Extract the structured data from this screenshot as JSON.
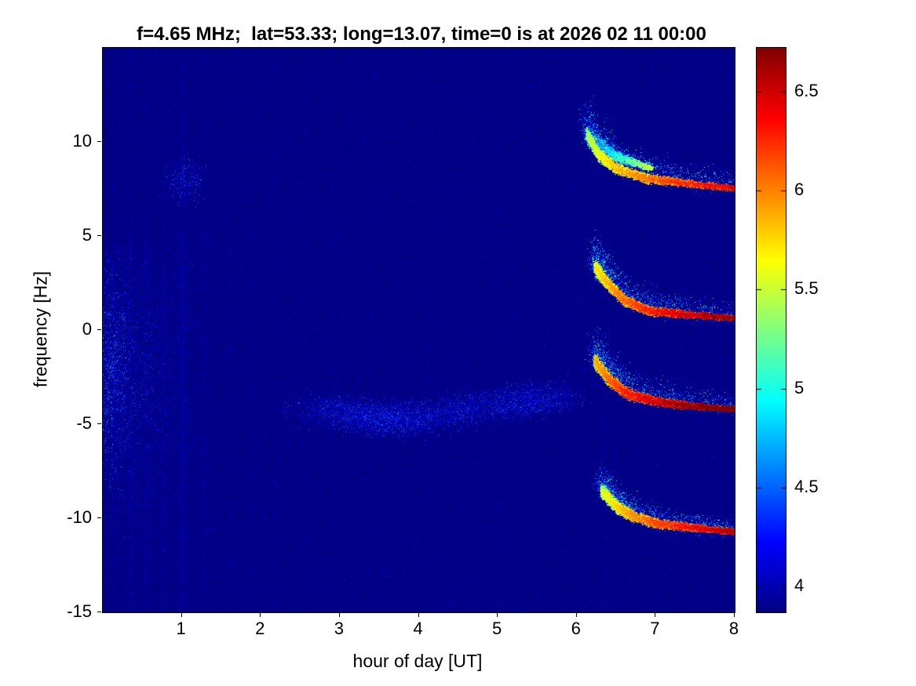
{
  "figure": {
    "background": "#ffffff",
    "accent_colormap": "jet",
    "deep_blue_background": "#00008a"
  },
  "chart_data": {
    "type": "heatmap",
    "title": "f=4.65 MHz;  lat=53.33; long=13.07, time=0 is at 2026 02 11 00:00",
    "xlabel": "hour of day [UT]",
    "ylabel": "frequency [Hz]",
    "xlim": [
      0,
      8
    ],
    "ylim": [
      -15,
      15
    ],
    "xticks": [
      1,
      2,
      3,
      4,
      5,
      6,
      7,
      8
    ],
    "yticks": [
      -15,
      -10,
      -5,
      0,
      5,
      10
    ],
    "grid": false,
    "legend": "none",
    "colorbar": {
      "position": "right",
      "colormap": "jet",
      "min": 3.87,
      "max": 6.72,
      "ticks": [
        4,
        4.5,
        5,
        5.5,
        6,
        6.5
      ]
    },
    "background_level": 3.88,
    "features": {
      "left_noise_band": {
        "x": [
          0,
          1.35
        ],
        "y": [
          -13.5,
          4.5
        ],
        "peak": 0.95,
        "description": "dense cyan-blue speckle noise near start of day, strongest at x<0.5 around y=-6..2"
      },
      "vertical_streaks": [
        {
          "x": 0.35,
          "amp": 0.22
        },
        {
          "x": 0.55,
          "amp": 0.25
        },
        {
          "x": 0.78,
          "amp": 0.2
        },
        {
          "x": 1.0,
          "amp": 0.32,
          "width": 5
        },
        {
          "x": 1.28,
          "amp": 0.18
        },
        {
          "x": 1.6,
          "amp": 0.14
        },
        {
          "x": 1.9,
          "amp": 0.12
        },
        {
          "x": 2.2,
          "amp": 0.12
        },
        {
          "x": 2.55,
          "amp": 0.1
        },
        {
          "x": 2.9,
          "amp": 0.1
        },
        {
          "x": 3.4,
          "amp": 0.08
        },
        {
          "x": 4.1,
          "amp": 0.07
        },
        {
          "x": 5.0,
          "amp": 0.06
        },
        {
          "x": 6.32,
          "amp": 0.2,
          "y": [
            -9,
            -4.5
          ]
        },
        {
          "x": 6.5,
          "amp": 0.12,
          "y": [
            -9,
            -5
          ]
        },
        {
          "x": 6.35,
          "amp": 0.12,
          "y": [
            -15,
            -11
          ]
        },
        {
          "x": 7.0,
          "amp": 0.07
        },
        {
          "x": 7.6,
          "amp": 0.06
        }
      ],
      "blobs": [
        {
          "x": 1.02,
          "y": 8.0,
          "sx": 0.12,
          "sy": 0.6,
          "amp": 0.85,
          "count": 400
        },
        {
          "x": 0.12,
          "y": -2.0,
          "sx": 0.1,
          "sy": 2.5,
          "amp": 1.1,
          "count": 900
        },
        {
          "x": 3.55,
          "y": -4.65,
          "sx": 0.25,
          "sy": 0.5,
          "amp": 0.9,
          "count": 700
        }
      ],
      "faint_cloud": {
        "points": [
          [
            2.65,
            -4.0
          ],
          [
            3.3,
            -4.6
          ],
          [
            3.9,
            -4.8
          ],
          [
            4.6,
            -4.2
          ],
          [
            5.3,
            -3.8
          ],
          [
            5.75,
            -3.5
          ]
        ],
        "spread_x": 0.22,
        "spread_y": 0.45,
        "amp": 0.75,
        "count": 6000,
        "description": "faint cyan speckle arc between hours 2.6 and 5.8 near -4 Hz"
      },
      "traces": [
        {
          "name": "doppler-trace-1",
          "points": [
            [
              6.12,
              10.4
            ],
            [
              6.28,
              9.3
            ],
            [
              6.5,
              8.6
            ],
            [
              6.85,
              8.1
            ],
            [
              7.3,
              7.85
            ],
            [
              8,
              7.55
            ]
          ],
          "core": 6.2,
          "scatter_above": 1.7
        },
        {
          "name": "doppler-trace-1-upper-branch",
          "points": [
            [
              6.18,
              10.2
            ],
            [
              6.5,
              9.2
            ],
            [
              6.95,
              8.6
            ]
          ],
          "core": 5.3,
          "scatter_above": 0.5,
          "core_count": 2000,
          "scatter_count": 500
        },
        {
          "name": "doppler-trace-2",
          "points": [
            [
              6.22,
              3.4
            ],
            [
              6.38,
              2.5
            ],
            [
              6.6,
              1.6
            ],
            [
              6.9,
              1.05
            ],
            [
              7.35,
              0.85
            ],
            [
              8,
              0.65
            ]
          ],
          "core": 6.45,
          "scatter_above": 1.5
        },
        {
          "name": "doppler-trace-3",
          "points": [
            [
              6.22,
              -1.6
            ],
            [
              6.4,
              -2.6
            ],
            [
              6.6,
              -3.3
            ],
            [
              6.95,
              -3.75
            ],
            [
              7.4,
              -4.0
            ],
            [
              8,
              -4.2
            ]
          ],
          "core": 6.65,
          "scatter_above": 1.5
        },
        {
          "name": "doppler-trace-4",
          "points": [
            [
              6.3,
              -8.5
            ],
            [
              6.5,
              -9.4
            ],
            [
              6.72,
              -9.9
            ],
            [
              7.05,
              -10.3
            ],
            [
              7.5,
              -10.5
            ],
            [
              8,
              -10.7
            ]
          ],
          "core": 6.35,
          "scatter_above": 1.1
        }
      ]
    }
  }
}
